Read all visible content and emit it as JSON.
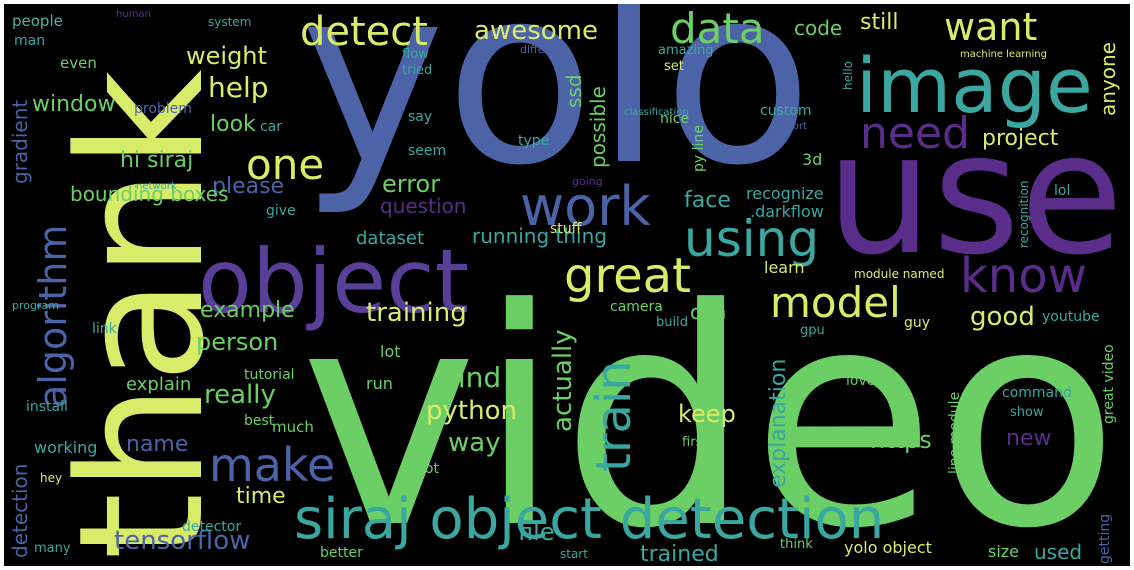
{
  "cloud": {
    "background": "#000000",
    "palette": {
      "teal": "#3aa8a0",
      "green": "#6ccf66",
      "lime": "#d8ec6a",
      "purple": "#5a2d8a",
      "blue": "#4c63a8",
      "lightteal": "#4eb5a0"
    },
    "words": {
      "video": "video",
      "yolo": "yolo",
      "thank": "thank",
      "use": "use",
      "object": "object",
      "image": "image",
      "siraj_object_detection": "siraj object detection",
      "great": "great",
      "using": "using",
      "know": "know",
      "work": "work",
      "train": "train",
      "algorithm": "algorithm",
      "make": "make",
      "model": "model",
      "need": "need",
      "one": "one",
      "detect": "detect",
      "data": "data",
      "want": "want",
      "awesome": "awesome",
      "help": "help",
      "weight": "weight",
      "window": "window",
      "look": "look",
      "hi_siraj": "hi siraj",
      "please": "please",
      "error": "error",
      "question": "question",
      "dataset": "dataset",
      "bounding_boxes": "bounding boxes",
      "running_thing": "running thing",
      "training": "training",
      "person": "person",
      "example": "example",
      "really": "really",
      "explain": "explain",
      "find": "find",
      "python": "python",
      "way": "way",
      "keep": "keep",
      "actually": "actually",
      "explanation": "explanation",
      "https": "https",
      "new": "new",
      "time": "time",
      "tensorflow": "tensorflow",
      "file": "file",
      "trained": "trained",
      "used": "used",
      "yolo_object": "yolo object",
      "good": "good",
      "project": "project",
      "anyone": "anyone",
      "still": "still",
      "code": "code",
      "cnn": "cnn",
      "face": "face",
      "recognize": "recognize",
      "darkflow": ".darkflow",
      "possible": "possible",
      "ssd": "ssd",
      "gradient": "gradient",
      "detection": "detection",
      "working": "working",
      "name": "name",
      "people": "people",
      "man": "man",
      "even": "even",
      "flow": "flow",
      "tried": "tried",
      "system": "system",
      "stuff": "stuff",
      "camera": "camera",
      "learn": "learn",
      "lot": "lot",
      "tutorial": "tutorial",
      "best": "best",
      "much": "much",
      "install": "install",
      "better": "better",
      "think": "think",
      "size": "size",
      "got": "got",
      "detector": "detector",
      "love": "love",
      "command": "command",
      "show": "show",
      "first": "first",
      "module_named": "module named",
      "youtube": "youtube",
      "guy": "guy",
      "line_module": "line module",
      "great_video": "great video",
      "give": "give",
      "program": "program",
      "link": "link",
      "many": "many",
      "hey": "hey",
      "say": "say",
      "seem": "seem",
      "type": "type",
      "nice": "nice",
      "py_line": "py line",
      "custom": "custom",
      "3d": "3d",
      "set": "set",
      "amazing": "amazing",
      "hello": "hello",
      "machine_learning": "machine learning",
      "recognition": "recognition",
      "car": "car",
      "network": "network",
      "lol": "lol",
      "gpu": "gpu",
      "run": "run",
      "getting": "getting",
      "start": "start",
      "build": "build",
      "problem": "problem",
      "different": "different",
      "classification": "classification",
      "human": "human",
      "import": "import",
      "going": "going"
    }
  }
}
